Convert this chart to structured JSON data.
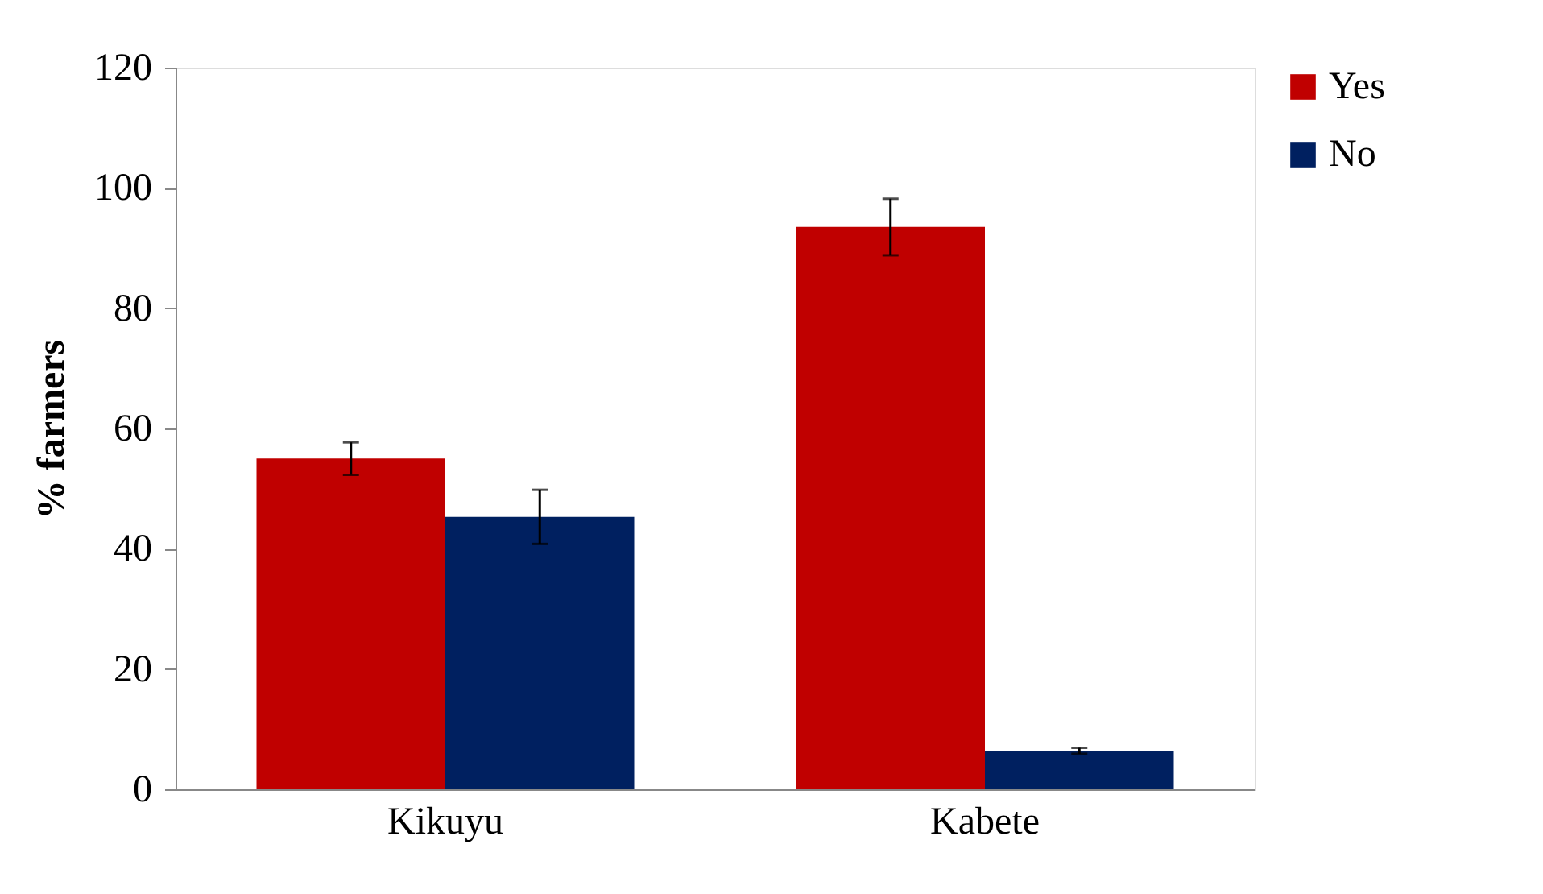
{
  "chart_data": {
    "type": "bar",
    "ylabel": "% farmers",
    "categories": [
      "Kikuyu",
      "Kabete"
    ],
    "series": [
      {
        "name": "Yes",
        "color": "#c00000",
        "values": [
          55,
          93.5
        ],
        "errors": [
          2.7,
          4.7
        ]
      },
      {
        "name": "No",
        "color": "#002060",
        "values": [
          45.3,
          6.4
        ],
        "errors": [
          4.5,
          0.5
        ]
      }
    ],
    "ylim": [
      0,
      120
    ],
    "yticks": [
      0,
      20,
      40,
      60,
      80,
      100,
      120
    ],
    "grid": false,
    "legend": "right"
  }
}
